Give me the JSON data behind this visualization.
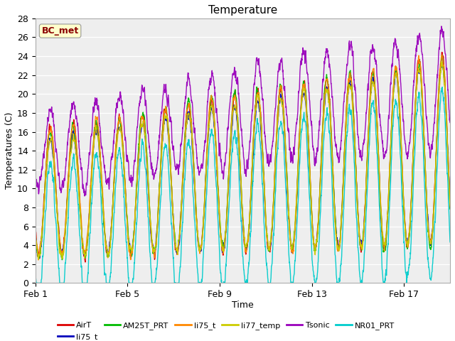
{
  "title": "Temperature",
  "xlabel": "Time",
  "ylabel": "Temperatures (C)",
  "annotation": "BC_met",
  "ylim": [
    0,
    28
  ],
  "yticks": [
    0,
    2,
    4,
    6,
    8,
    10,
    12,
    14,
    16,
    18,
    20,
    22,
    24,
    26,
    28
  ],
  "xtick_positions": [
    0,
    4,
    8,
    12,
    16
  ],
  "xtick_labels": [
    "Feb 1",
    "Feb 5",
    "Feb 9",
    "Feb 13",
    "Feb 17"
  ],
  "plot_bg_color": "#eeeeee",
  "series": [
    {
      "label": "AirT",
      "color": "#dd0000",
      "lw": 1.0
    },
    {
      "label": "li75_t",
      "color": "#0000bb",
      "lw": 1.0
    },
    {
      "label": "AM25T_PRT",
      "color": "#00bb00",
      "lw": 1.0
    },
    {
      "label": "li75_t",
      "color": "#ff8800",
      "lw": 1.0
    },
    {
      "label": "li77_temp",
      "color": "#cccc00",
      "lw": 1.0
    },
    {
      "label": "Tsonic",
      "color": "#9900bb",
      "lw": 1.0
    },
    {
      "label": "NR01_PRT",
      "color": "#00cccc",
      "lw": 1.0
    }
  ],
  "num_days": 18,
  "pts_per_day": 144,
  "seed": 7
}
